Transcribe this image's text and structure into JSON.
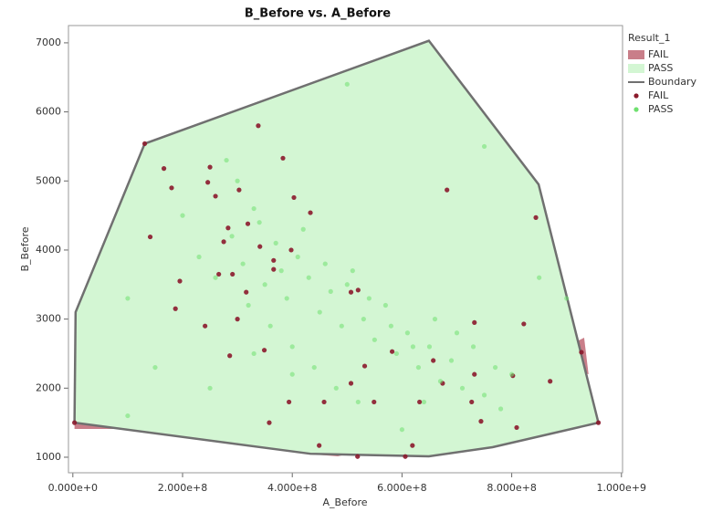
{
  "chart_data": {
    "type": "scatter",
    "title": "B_Before vs. A_Before",
    "xlabel": "A_Before",
    "ylabel": "B_Before",
    "legend_title": "Result_1",
    "legend": "right",
    "xlim": [
      -8000000,
      1002000000
    ],
    "ylim": [
      775,
      7250
    ],
    "xticks": [
      {
        "value": 0,
        "label": "0.000e+0"
      },
      {
        "value": 200000000,
        "label": "2.000e+8"
      },
      {
        "value": 400000000,
        "label": "4.000e+8"
      },
      {
        "value": 600000000,
        "label": "6.000e+8"
      },
      {
        "value": 800000000,
        "label": "8.000e+8"
      },
      {
        "value": 1000000000,
        "label": "1.000e+9"
      }
    ],
    "yticks": [
      1000,
      2000,
      3000,
      4000,
      5000,
      6000,
      7000
    ],
    "series": [
      {
        "name": "FAIL",
        "mark": "area",
        "color": "#c97e89",
        "polygons": [
          {
            "x": [
              586000000.0,
              674000000.0,
              765000000.0,
              674000000.0,
              602000000.0
            ],
            "y": [
              5637,
              5927,
              4910,
              4448,
              4738
            ]
          },
          {
            "x": [
              136000000.0,
              416000000.0,
              433000000.0,
              300000000.0,
              191000000.0,
              175000000.0
            ],
            "y": [
              5571,
              6073,
              5663,
              5505,
              5440,
              5174
            ]
          },
          {
            "x": [
              75000000.0,
              166000000.0,
              241000000.0,
              258000000.0,
              183000000.0
            ],
            "y": [
              3695,
              4448,
              4976,
              4514,
              4157
            ]
          },
          {
            "x": [
              208000000.0,
              275000000.0,
              324000000.0,
              316000000.0,
              266000000.0,
              225000000.0
            ],
            "y": [
              5174,
              5306,
              5042,
              4316,
              4118,
              4580
            ]
          },
          {
            "x": [
              166000000.0,
              216000000.0,
              220000000.0,
              175000000.0,
              163000000.0
            ],
            "y": [
              3655,
              3629,
              3127,
              3061,
              3127
            ]
          },
          {
            "x": [
              3000000.0,
              50000000.0,
              83000000.0,
              3000000.0
            ],
            "y": [
              1872,
              1674,
              1410,
              1410
            ]
          },
          {
            "x": [
              441000000.0,
              491000000.0,
              541000000.0,
              483000000.0,
              441000000.0
            ],
            "y": [
              1277,
              1343,
              1119,
              1013,
              1040
            ]
          },
          {
            "x": [
              699000000.0,
              799000000.0,
              832000000.0,
              749000000.0
            ],
            "y": [
              1410,
              1515,
              1410,
              1211
            ]
          },
          {
            "x": [
              865000000.0,
              948000000.0,
              958000000.0,
              865000000.0
            ],
            "y": [
              1568,
              1647,
              1515,
              1410
            ]
          },
          {
            "x": [
              840000000.0,
              857000000.0,
              832000000.0
            ],
            "y": [
              4646,
              4157,
              4448
            ]
          },
          {
            "x": [
              899000000.0,
              932000000.0,
              940000000.0,
              907000000.0
            ],
            "y": [
              2598,
              2731,
              2202,
              2268
            ]
          },
          {
            "x": [
              566000000.0,
              599000000.0,
              624000000.0,
              574000000.0
            ],
            "y": [
              1410,
              1476,
              1145,
              1079
            ]
          }
        ]
      },
      {
        "name": "PASS",
        "mark": "area",
        "color": "#d3f6d3",
        "polygons": [
          {
            "x": [
              3000000.0,
              5000000.0,
              131000000.0,
              649000000.0,
              849000000.0,
              958000000.0,
              765000000.0,
              649000000.0,
              433000000.0
            ],
            "y": [
              1500,
              3100,
              5540,
              7030,
              4950,
              1500,
              1145,
              1013,
              1050
            ]
          }
        ]
      },
      {
        "name": "Boundary",
        "mark": "line",
        "color": "#707070",
        "x": [
          3000000.0,
          5000000.0,
          131000000.0,
          649000000.0,
          849000000.0,
          958000000.0,
          765000000.0,
          649000000.0,
          433000000.0,
          3000000.0
        ],
        "y": [
          1500,
          3100,
          5540,
          7030,
          4950,
          1500,
          1145,
          1013,
          1050,
          1500
        ]
      },
      {
        "name": "FAIL",
        "mark": "points",
        "color": "#8b1a2c",
        "x": [
          3000000.0,
          131000000.0,
          338000000.0,
          383000000.0,
          166000000.0,
          180000000.0,
          141000000.0,
          195000000.0,
          187000000.0,
          241000000.0,
          286000000.0,
          349000000.0,
          398000000.0,
          403000000.0,
          433000000.0,
          507000000.0,
          520000000.0,
          532000000.0,
          458000000.0,
          394000000.0,
          358000000.0,
          449000000.0,
          519000000.0,
          606000000.0,
          619000000.0,
          682000000.0,
          732000000.0,
          732000000.0,
          727000000.0,
          744000000.0,
          802000000.0,
          809000000.0,
          844000000.0,
          822000000.0,
          870000000.0,
          927000000.0,
          958000000.0,
          300000000.0,
          266000000.0,
          316000000.0,
          291000000.0,
          366000000.0,
          246000000.0,
          260000000.0,
          283000000.0,
          319000000.0,
          341000000.0,
          366000000.0,
          275000000.0,
          303000000.0,
          250000000.0,
          632000000.0,
          674000000.0,
          582000000.0,
          657000000.0,
          549000000.0,
          507000000.0
        ],
        "y": [
          1500,
          5540,
          5800,
          5330,
          5180,
          4900,
          4190,
          3550,
          3150,
          2900,
          2470,
          2550,
          4000,
          4760,
          4540,
          3390,
          3420,
          2320,
          1800,
          1800,
          1500,
          1170,
          1010,
          1010,
          1170,
          4870,
          2950,
          2200,
          1800,
          1520,
          2180,
          1430,
          4470,
          2930,
          2100,
          2520,
          1500,
          3000,
          3650,
          3390,
          3650,
          3720,
          4980,
          4780,
          4320,
          4380,
          4050,
          3850,
          4120,
          4870,
          5200,
          1800,
          2070,
          2530,
          2400,
          1800,
          2070
        ]
      },
      {
        "name": "PASS",
        "mark": "points",
        "color": "#6fe06f",
        "x": [
          200000000.0,
          230000000.0,
          260000000.0,
          290000000.0,
          310000000.0,
          330000000.0,
          350000000.0,
          370000000.0,
          390000000.0,
          410000000.0,
          430000000.0,
          450000000.0,
          470000000.0,
          490000000.0,
          510000000.0,
          530000000.0,
          550000000.0,
          570000000.0,
          590000000.0,
          610000000.0,
          630000000.0,
          650000000.0,
          670000000.0,
          690000000.0,
          710000000.0,
          730000000.0,
          750000000.0,
          770000000.0,
          320000000.0,
          360000000.0,
          400000000.0,
          440000000.0,
          480000000.0,
          520000000.0,
          300000000.0,
          280000000.0,
          340000000.0,
          380000000.0,
          420000000.0,
          460000000.0,
          500000000.0,
          540000000.0,
          580000000.0,
          620000000.0,
          660000000.0,
          700000000.0,
          800000000.0,
          850000000.0,
          150000000.0,
          100000000.0,
          250000000.0,
          600000000.0,
          900000000.0,
          750000000.0,
          500000000.0,
          100000000.0,
          330000000.0,
          400000000.0,
          640000000.0,
          780000000.0
        ],
        "y": [
          4500,
          3900,
          3600,
          4200,
          3800,
          4600,
          3500,
          4100,
          3300,
          3900,
          3600,
          3100,
          3400,
          2900,
          3700,
          3000,
          2700,
          3200,
          2500,
          2800,
          2300,
          2600,
          2100,
          2400,
          2000,
          2600,
          1900,
          2300,
          3200,
          2900,
          2600,
          2300,
          2000,
          1800,
          5000,
          5300,
          4400,
          3700,
          4300,
          3800,
          3500,
          3300,
          2900,
          2600,
          3000,
          2800,
          2200,
          3600,
          2300,
          1600,
          2000,
          1400,
          3300,
          5500,
          6400,
          3300,
          2500,
          2200,
          1800,
          1700
        ]
      }
    ]
  }
}
